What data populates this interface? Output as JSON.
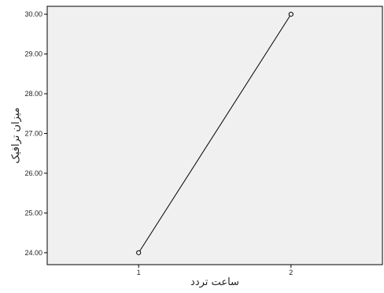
{
  "chart_data": {
    "type": "line",
    "title": "",
    "xlabel": "ساعت تردد",
    "ylabel": "میزان ترافیک",
    "x": [
      1,
      2
    ],
    "x_tick_labels": [
      "1",
      "2"
    ],
    "xlim": [
      0.4,
      2.6
    ],
    "ylim": [
      23.7,
      30.2
    ],
    "y_ticks": [
      24,
      25,
      26,
      27,
      28,
      29,
      30
    ],
    "y_tick_labels": [
      "24.00",
      "25.00",
      "26.00",
      "27.00",
      "28.00",
      "29.00",
      "30.00"
    ],
    "series": [
      {
        "values": [
          24.0,
          30.0
        ]
      }
    ],
    "markers": "open-circle",
    "grid": false,
    "legend": "none",
    "colors": {
      "plot_background": "#f0f0f0",
      "line": "#000000",
      "axis": "#000000"
    }
  }
}
